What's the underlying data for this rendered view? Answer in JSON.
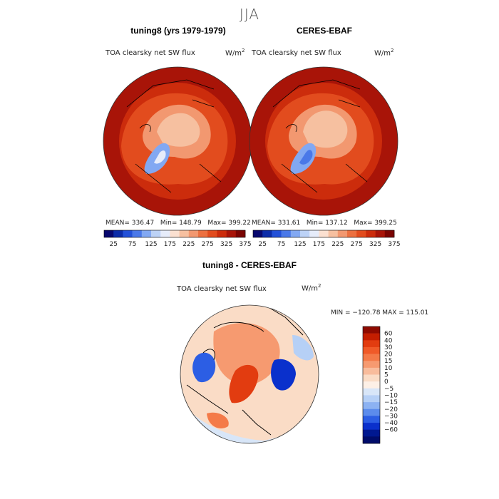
{
  "season": "JJA",
  "panels": [
    {
      "title": "tuning8 (yrs 1979-1979)",
      "variable": "TOA clearsky net SW flux",
      "units": "W/m",
      "units_exp": "2",
      "stats": {
        "mean_label": "MEAN=",
        "mean": "336.47",
        "min_label": "Min=",
        "min": "148.79",
        "max_label": "Max=",
        "max": "399.22"
      }
    },
    {
      "title": "CERES-EBAF",
      "variable": "TOA clearsky net SW flux",
      "units": "W/m",
      "units_exp": "2",
      "stats": {
        "mean_label": "MEAN=",
        "mean": "331.61",
        "min_label": "Min=",
        "min": "137.12",
        "max_label": "Max=",
        "max": "399.25"
      }
    }
  ],
  "abs_colorbar": {
    "levels": [
      "25",
      "75",
      "125",
      "175",
      "225",
      "275",
      "325",
      "375"
    ],
    "colors": [
      "#08086e",
      "#0c2ca8",
      "#2250d8",
      "#4a78e8",
      "#82a8f2",
      "#bcd2f6",
      "#e6ecfa",
      "#fbe0d0",
      "#f6c0a0",
      "#f29870",
      "#ec7040",
      "#e24c1e",
      "#cc2c0c",
      "#a81408",
      "#7a0402"
    ]
  },
  "diff_panel": {
    "title": "tuning8 - CERES-EBAF",
    "variable": "TOA clearsky net SW flux",
    "units": "W/m",
    "units_exp": "2",
    "min_max": "MIN = −120.78  MAX = 115.01"
  },
  "diff_colorbar": {
    "labels": [
      "60",
      "40",
      "30",
      "20",
      "15",
      "10",
      "5",
      "0",
      "−5",
      "−10",
      "−15",
      "−20",
      "−30",
      "−40",
      "−60"
    ],
    "colors": [
      "#8e0a00",
      "#c41e00",
      "#e23c10",
      "#f05a28",
      "#f47a48",
      "#f69a70",
      "#f8bc9c",
      "#fadcc6",
      "#fdf0e6",
      "#d8e6f8",
      "#b6d0f6",
      "#8cb2f2",
      "#5c8cec",
      "#2c5ee4",
      "#0a30cc",
      "#001890",
      "#000c6a"
    ]
  },
  "chart_data": [
    {
      "type": "heatmap",
      "title": "tuning8 (yrs 1979-1979)",
      "subtitle": "TOA clearsky net SW flux",
      "units": "W/m2",
      "projection": "north polar stereographic",
      "stats": {
        "mean": 336.47,
        "min": 148.79,
        "max": 399.22
      },
      "contour_levels": [
        25,
        75,
        125,
        175,
        225,
        275,
        325,
        375
      ]
    },
    {
      "type": "heatmap",
      "title": "CERES-EBAF",
      "subtitle": "TOA clearsky net SW flux",
      "units": "W/m2",
      "projection": "north polar stereographic",
      "stats": {
        "mean": 331.61,
        "min": 137.12,
        "max": 399.25
      },
      "contour_levels": [
        25,
        75,
        125,
        175,
        225,
        275,
        325,
        375
      ]
    },
    {
      "type": "heatmap",
      "title": "tuning8 - CERES-EBAF",
      "subtitle": "TOA clearsky net SW flux",
      "units": "W/m2",
      "projection": "north polar stereographic",
      "stats": {
        "min": -120.78,
        "max": 115.01
      },
      "contour_levels": [
        -60,
        -40,
        -30,
        -20,
        -15,
        -10,
        -5,
        0,
        5,
        10,
        15,
        20,
        30,
        40,
        60
      ]
    }
  ]
}
